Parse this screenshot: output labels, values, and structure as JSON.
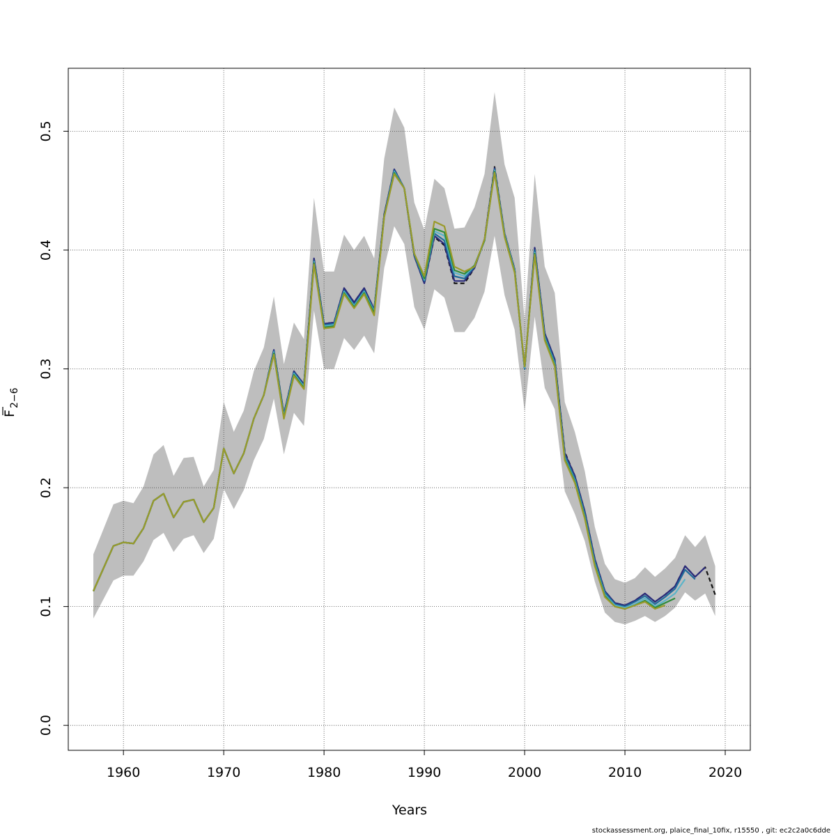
{
  "chart_data": {
    "type": "line",
    "xlabel": "Years",
    "ylabel_main": "F",
    "ylabel_sub": "2−6",
    "xlim": [
      1954.5,
      2022.5
    ],
    "ylim": [
      -0.021,
      0.553
    ],
    "xticks": [
      1960,
      1970,
      1980,
      1990,
      2000,
      2010,
      2020
    ],
    "yticks": [
      0.0,
      0.1,
      0.2,
      0.3,
      0.4,
      0.5
    ],
    "ytick_labels": [
      "0.0",
      "0.1",
      "0.2",
      "0.3",
      "0.4",
      "0.5"
    ],
    "grid": true,
    "band_color": "#bebebe",
    "confidence_band": {
      "x": [
        1957,
        1958,
        1959,
        1960,
        1961,
        1962,
        1963,
        1964,
        1965,
        1966,
        1967,
        1968,
        1969,
        1970,
        1971,
        1972,
        1973,
        1974,
        1975,
        1976,
        1977,
        1978,
        1979,
        1980,
        1981,
        1982,
        1983,
        1984,
        1985,
        1986,
        1987,
        1988,
        1989,
        1990,
        1991,
        1992,
        1993,
        1994,
        1995,
        1996,
        1997,
        1998,
        1999,
        2000,
        2001,
        2002,
        2003,
        2004,
        2005,
        2006,
        2007,
        2008,
        2009,
        2010,
        2011,
        2012,
        2013,
        2014,
        2015,
        2016,
        2017,
        2018,
        2019
      ],
      "upper": [
        0.144,
        0.165,
        0.186,
        0.189,
        0.187,
        0.201,
        0.228,
        0.236,
        0.21,
        0.225,
        0.226,
        0.201,
        0.215,
        0.272,
        0.247,
        0.265,
        0.298,
        0.318,
        0.361,
        0.304,
        0.339,
        0.325,
        0.444,
        0.382,
        0.382,
        0.413,
        0.4,
        0.412,
        0.393,
        0.477,
        0.52,
        0.503,
        0.44,
        0.417,
        0.46,
        0.452,
        0.418,
        0.419,
        0.436,
        0.464,
        0.533,
        0.472,
        0.444,
        0.34,
        0.464,
        0.386,
        0.364,
        0.272,
        0.247,
        0.214,
        0.167,
        0.136,
        0.123,
        0.12,
        0.124,
        0.133,
        0.125,
        0.132,
        0.141,
        0.16,
        0.15,
        0.16,
        0.134
      ],
      "lower": [
        0.09,
        0.106,
        0.122,
        0.126,
        0.126,
        0.138,
        0.156,
        0.162,
        0.146,
        0.157,
        0.16,
        0.145,
        0.157,
        0.199,
        0.182,
        0.198,
        0.223,
        0.241,
        0.275,
        0.228,
        0.263,
        0.252,
        0.349,
        0.3,
        0.3,
        0.326,
        0.316,
        0.328,
        0.313,
        0.385,
        0.42,
        0.405,
        0.352,
        0.333,
        0.367,
        0.36,
        0.331,
        0.331,
        0.343,
        0.365,
        0.412,
        0.362,
        0.333,
        0.264,
        0.344,
        0.284,
        0.266,
        0.197,
        0.178,
        0.155,
        0.121,
        0.095,
        0.087,
        0.085,
        0.088,
        0.092,
        0.087,
        0.092,
        0.099,
        0.112,
        0.105,
        0.111,
        0.092
      ]
    },
    "series": [
      {
        "color": "#111111",
        "dashed": true,
        "x": [
          1957,
          1958,
          1959,
          1960,
          1961,
          1962,
          1963,
          1964,
          1965,
          1966,
          1967,
          1968,
          1969,
          1970,
          1971,
          1972,
          1973,
          1974,
          1975,
          1976,
          1977,
          1978,
          1979,
          1980,
          1981,
          1982,
          1983,
          1984,
          1985,
          1986,
          1987,
          1988,
          1989,
          1990,
          1991,
          1992,
          1993,
          1994,
          1995,
          1996,
          1997,
          1998,
          1999,
          2000,
          2001,
          2002,
          2003,
          2004,
          2005,
          2006,
          2007,
          2008,
          2009,
          2010,
          2011,
          2012,
          2013,
          2014,
          2015,
          2016,
          2017,
          2018,
          2019
        ],
        "values": [
          0.113,
          0.132,
          0.151,
          0.154,
          0.153,
          0.166,
          0.189,
          0.195,
          0.175,
          0.188,
          0.19,
          0.171,
          0.183,
          0.233,
          0.212,
          0.229,
          0.258,
          0.278,
          0.316,
          0.262,
          0.298,
          0.287,
          0.393,
          0.338,
          0.339,
          0.368,
          0.356,
          0.368,
          0.35,
          0.43,
          0.468,
          0.452,
          0.395,
          0.372,
          0.411,
          0.404,
          0.372,
          0.372,
          0.385,
          0.409,
          0.47,
          0.414,
          0.384,
          0.3,
          0.402,
          0.33,
          0.308,
          0.23,
          0.21,
          0.18,
          0.14,
          0.113,
          0.103,
          0.101,
          0.105,
          0.111,
          0.104,
          0.11,
          0.117,
          0.134,
          0.125,
          0.133,
          0.11
        ]
      },
      {
        "color": "#2a2a7a",
        "dashed": false,
        "x": [
          1957,
          1958,
          1959,
          1960,
          1961,
          1962,
          1963,
          1964,
          1965,
          1966,
          1967,
          1968,
          1969,
          1970,
          1971,
          1972,
          1973,
          1974,
          1975,
          1976,
          1977,
          1978,
          1979,
          1980,
          1981,
          1982,
          1983,
          1984,
          1985,
          1986,
          1987,
          1988,
          1989,
          1990,
          1991,
          1992,
          1993,
          1994,
          1995,
          1996,
          1997,
          1998,
          1999,
          2000,
          2001,
          2002,
          2003,
          2004,
          2005,
          2006,
          2007,
          2008,
          2009,
          2010,
          2011,
          2012,
          2013,
          2014,
          2015,
          2016,
          2017,
          2018
        ],
        "values": [
          0.113,
          0.132,
          0.151,
          0.154,
          0.153,
          0.166,
          0.189,
          0.195,
          0.175,
          0.188,
          0.19,
          0.171,
          0.183,
          0.233,
          0.212,
          0.229,
          0.258,
          0.278,
          0.316,
          0.262,
          0.298,
          0.287,
          0.393,
          0.338,
          0.339,
          0.368,
          0.356,
          0.368,
          0.35,
          0.43,
          0.468,
          0.452,
          0.395,
          0.372,
          0.412,
          0.405,
          0.374,
          0.374,
          0.385,
          0.409,
          0.469,
          0.414,
          0.384,
          0.3,
          0.402,
          0.33,
          0.308,
          0.229,
          0.21,
          0.18,
          0.14,
          0.113,
          0.103,
          0.101,
          0.105,
          0.111,
          0.104,
          0.11,
          0.117,
          0.134,
          0.125,
          0.133
        ]
      },
      {
        "color": "#1e6b9a",
        "dashed": false,
        "x": [
          1957,
          1958,
          1959,
          1960,
          1961,
          1962,
          1963,
          1964,
          1965,
          1966,
          1967,
          1968,
          1969,
          1970,
          1971,
          1972,
          1973,
          1974,
          1975,
          1976,
          1977,
          1978,
          1979,
          1980,
          1981,
          1982,
          1983,
          1984,
          1985,
          1986,
          1987,
          1988,
          1989,
          1990,
          1991,
          1992,
          1993,
          1994,
          1995,
          1996,
          1997,
          1998,
          1999,
          2000,
          2001,
          2002,
          2003,
          2004,
          2005,
          2006,
          2007,
          2008,
          2009,
          2010,
          2011,
          2012,
          2013,
          2014,
          2015,
          2016,
          2017
        ],
        "values": [
          0.113,
          0.132,
          0.151,
          0.154,
          0.153,
          0.166,
          0.189,
          0.195,
          0.175,
          0.188,
          0.19,
          0.171,
          0.183,
          0.233,
          0.212,
          0.229,
          0.258,
          0.278,
          0.315,
          0.261,
          0.297,
          0.286,
          0.391,
          0.337,
          0.338,
          0.366,
          0.354,
          0.366,
          0.349,
          0.429,
          0.467,
          0.452,
          0.396,
          0.374,
          0.414,
          0.408,
          0.378,
          0.376,
          0.386,
          0.408,
          0.468,
          0.413,
          0.383,
          0.3,
          0.4,
          0.328,
          0.306,
          0.227,
          0.208,
          0.178,
          0.138,
          0.112,
          0.102,
          0.1,
          0.104,
          0.109,
          0.102,
          0.108,
          0.115,
          0.131,
          0.123
        ]
      },
      {
        "color": "#5ab4c9",
        "dashed": false,
        "x": [
          1957,
          1958,
          1959,
          1960,
          1961,
          1962,
          1963,
          1964,
          1965,
          1966,
          1967,
          1968,
          1969,
          1970,
          1971,
          1972,
          1973,
          1974,
          1975,
          1976,
          1977,
          1978,
          1979,
          1980,
          1981,
          1982,
          1983,
          1984,
          1985,
          1986,
          1987,
          1988,
          1989,
          1990,
          1991,
          1992,
          1993,
          1994,
          1995,
          1996,
          1997,
          1998,
          1999,
          2000,
          2001,
          2002,
          2003,
          2004,
          2005,
          2006,
          2007,
          2008,
          2009,
          2010,
          2011,
          2012,
          2013,
          2014,
          2015,
          2016
        ],
        "values": [
          0.113,
          0.132,
          0.151,
          0.154,
          0.153,
          0.166,
          0.189,
          0.195,
          0.175,
          0.188,
          0.19,
          0.171,
          0.183,
          0.233,
          0.212,
          0.229,
          0.258,
          0.278,
          0.314,
          0.26,
          0.296,
          0.285,
          0.39,
          0.336,
          0.337,
          0.365,
          0.353,
          0.365,
          0.348,
          0.428,
          0.466,
          0.452,
          0.397,
          0.375,
          0.416,
          0.412,
          0.381,
          0.378,
          0.387,
          0.408,
          0.467,
          0.413,
          0.383,
          0.301,
          0.398,
          0.326,
          0.304,
          0.225,
          0.206,
          0.176,
          0.136,
          0.11,
          0.101,
          0.099,
          0.102,
          0.107,
          0.1,
          0.105,
          0.111,
          0.123
        ]
      },
      {
        "color": "#2e8b3a",
        "dashed": false,
        "x": [
          1957,
          1958,
          1959,
          1960,
          1961,
          1962,
          1963,
          1964,
          1965,
          1966,
          1967,
          1968,
          1969,
          1970,
          1971,
          1972,
          1973,
          1974,
          1975,
          1976,
          1977,
          1978,
          1979,
          1980,
          1981,
          1982,
          1983,
          1984,
          1985,
          1986,
          1987,
          1988,
          1989,
          1990,
          1991,
          1992,
          1993,
          1994,
          1995,
          1996,
          1997,
          1998,
          1999,
          2000,
          2001,
          2002,
          2003,
          2004,
          2005,
          2006,
          2007,
          2008,
          2009,
          2010,
          2011,
          2012,
          2013,
          2014,
          2015
        ],
        "values": [
          0.113,
          0.132,
          0.151,
          0.154,
          0.153,
          0.166,
          0.189,
          0.195,
          0.175,
          0.188,
          0.19,
          0.171,
          0.183,
          0.233,
          0.212,
          0.229,
          0.258,
          0.278,
          0.313,
          0.259,
          0.295,
          0.284,
          0.389,
          0.335,
          0.336,
          0.364,
          0.352,
          0.364,
          0.347,
          0.428,
          0.465,
          0.452,
          0.397,
          0.376,
          0.418,
          0.415,
          0.383,
          0.38,
          0.387,
          0.408,
          0.466,
          0.412,
          0.382,
          0.302,
          0.397,
          0.325,
          0.303,
          0.224,
          0.205,
          0.175,
          0.135,
          0.109,
          0.1,
          0.098,
          0.101,
          0.105,
          0.099,
          0.103,
          0.107
        ]
      },
      {
        "color": "#9a9a2a",
        "dashed": false,
        "x": [
          1957,
          1958,
          1959,
          1960,
          1961,
          1962,
          1963,
          1964,
          1965,
          1966,
          1967,
          1968,
          1969,
          1970,
          1971,
          1972,
          1973,
          1974,
          1975,
          1976,
          1977,
          1978,
          1979,
          1980,
          1981,
          1982,
          1983,
          1984,
          1985,
          1986,
          1987,
          1988,
          1989,
          1990,
          1991,
          1992,
          1993,
          1994,
          1995,
          1996,
          1997,
          1998,
          1999,
          2000,
          2001,
          2002,
          2003,
          2004,
          2005,
          2006,
          2007,
          2008,
          2009,
          2010,
          2011,
          2012,
          2013,
          2014
        ],
        "values": [
          0.113,
          0.132,
          0.151,
          0.154,
          0.153,
          0.166,
          0.189,
          0.195,
          0.175,
          0.188,
          0.19,
          0.171,
          0.183,
          0.233,
          0.212,
          0.229,
          0.258,
          0.278,
          0.312,
          0.258,
          0.294,
          0.283,
          0.388,
          0.334,
          0.335,
          0.363,
          0.351,
          0.363,
          0.345,
          0.428,
          0.464,
          0.452,
          0.397,
          0.378,
          0.424,
          0.42,
          0.386,
          0.382,
          0.386,
          0.409,
          0.465,
          0.411,
          0.381,
          0.302,
          0.396,
          0.324,
          0.302,
          0.223,
          0.204,
          0.174,
          0.134,
          0.108,
          0.1,
          0.098,
          0.101,
          0.104,
          0.098,
          0.101
        ]
      }
    ]
  },
  "footer": {
    "note": "stockassessment.org, plaice_final_10fix, r15550 , git: ec2c2a0c6dde"
  }
}
